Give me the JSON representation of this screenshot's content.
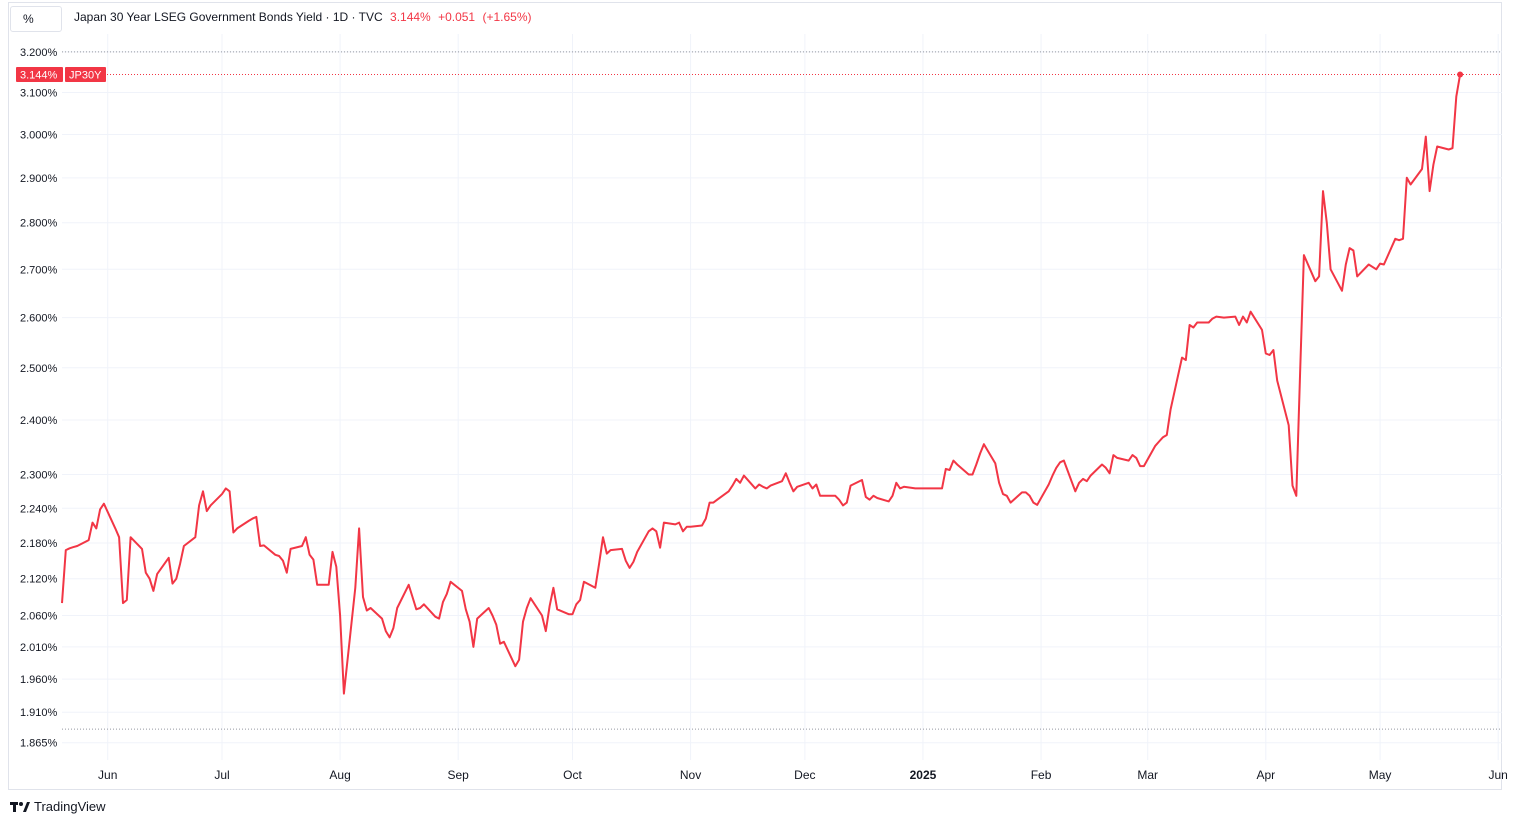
{
  "header": {
    "unit_label": "%",
    "title": "Japan 30 Year LSEG Government Bonds Yield",
    "interval": "1D",
    "source": "TVC",
    "last_value": "3.144%",
    "change": "+0.051",
    "change_pct": "(+1.65%)"
  },
  "price_tag": {
    "value": "3.144%",
    "symbol": "JP30Y"
  },
  "branding": {
    "name": "TradingView",
    "icon": "tradingview-logo-icon"
  },
  "colors": {
    "line": "#f23645",
    "grid": "#f0f3fa",
    "text": "#131722"
  },
  "chart_data": {
    "type": "line",
    "title": "Japan 30 Year LSEG Government Bonds Yield",
    "xlabel": "",
    "ylabel": "%",
    "y_scale": "log",
    "ylim": [
      1.84,
      3.245
    ],
    "xlim": [
      "2024-05-20",
      "2025-06-02"
    ],
    "grid": true,
    "y_ticks": [
      "3.200%",
      "3.100%",
      "3.000%",
      "2.900%",
      "2.800%",
      "2.700%",
      "2.600%",
      "2.500%",
      "2.400%",
      "2.300%",
      "2.240%",
      "2.180%",
      "2.120%",
      "2.060%",
      "2.010%",
      "1.960%",
      "1.910%",
      "1.865%"
    ],
    "x_ticks": [
      {
        "label": "Jun",
        "date": "2024-06-01"
      },
      {
        "label": "Jul",
        "date": "2024-07-01"
      },
      {
        "label": "Aug",
        "date": "2024-08-01"
      },
      {
        "label": "Sep",
        "date": "2024-09-01"
      },
      {
        "label": "Oct",
        "date": "2024-10-01"
      },
      {
        "label": "Nov",
        "date": "2024-11-01"
      },
      {
        "label": "Dec",
        "date": "2024-12-01"
      },
      {
        "label": "2025",
        "date": "2025-01-01",
        "bold": true
      },
      {
        "label": "Feb",
        "date": "2025-02-01"
      },
      {
        "label": "Mar",
        "date": "2025-03-01"
      },
      {
        "label": "Apr",
        "date": "2025-04-01"
      },
      {
        "label": "May",
        "date": "2025-05-01"
      },
      {
        "label": "Jun",
        "date": "2025-06-01"
      }
    ],
    "dotted_levels": [
      3.2,
      1.885
    ],
    "last_value": 3.144,
    "series": [
      {
        "values": [
          [
            "2024-05-20",
            2.08
          ],
          [
            "2024-05-21",
            2.168
          ],
          [
            "2024-05-22",
            2.171
          ],
          [
            "2024-05-23",
            2.173
          ],
          [
            "2024-05-24",
            2.175
          ],
          [
            "2024-05-27",
            2.185
          ],
          [
            "2024-05-28",
            2.215
          ],
          [
            "2024-05-29",
            2.205
          ],
          [
            "2024-05-30",
            2.238
          ],
          [
            "2024-05-31",
            2.248
          ],
          [
            "2024-06-03",
            2.205
          ],
          [
            "2024-06-04",
            2.19
          ],
          [
            "2024-06-05",
            2.08
          ],
          [
            "2024-06-06",
            2.085
          ],
          [
            "2024-06-07",
            2.19
          ],
          [
            "2024-06-10",
            2.17
          ],
          [
            "2024-06-11",
            2.13
          ],
          [
            "2024-06-12",
            2.12
          ],
          [
            "2024-06-13",
            2.1
          ],
          [
            "2024-06-14",
            2.128
          ],
          [
            "2024-06-17",
            2.155
          ],
          [
            "2024-06-18",
            2.112
          ],
          [
            "2024-06-19",
            2.12
          ],
          [
            "2024-06-20",
            2.145
          ],
          [
            "2024-06-21",
            2.175
          ],
          [
            "2024-06-24",
            2.19
          ],
          [
            "2024-06-25",
            2.245
          ],
          [
            "2024-06-26",
            2.27
          ],
          [
            "2024-06-27",
            2.235
          ],
          [
            "2024-06-28",
            2.245
          ],
          [
            "2024-07-01",
            2.265
          ],
          [
            "2024-07-02",
            2.275
          ],
          [
            "2024-07-03",
            2.27
          ],
          [
            "2024-07-04",
            2.198
          ],
          [
            "2024-07-05",
            2.205
          ],
          [
            "2024-07-08",
            2.218
          ],
          [
            "2024-07-09",
            2.222
          ],
          [
            "2024-07-10",
            2.225
          ],
          [
            "2024-07-11",
            2.175
          ],
          [
            "2024-07-12",
            2.176
          ],
          [
            "2024-07-15",
            2.16
          ],
          [
            "2024-07-16",
            2.158
          ],
          [
            "2024-07-17",
            2.15
          ],
          [
            "2024-07-18",
            2.13
          ],
          [
            "2024-07-19",
            2.17
          ],
          [
            "2024-07-22",
            2.175
          ],
          [
            "2024-07-23",
            2.19
          ],
          [
            "2024-07-24",
            2.16
          ],
          [
            "2024-07-25",
            2.152
          ],
          [
            "2024-07-26",
            2.11
          ],
          [
            "2024-07-29",
            2.11
          ],
          [
            "2024-07-30",
            2.165
          ],
          [
            "2024-07-31",
            2.14
          ],
          [
            "2024-08-01",
            2.06
          ],
          [
            "2024-08-02",
            1.938
          ],
          [
            "2024-08-05",
            2.105
          ],
          [
            "2024-08-06",
            2.205
          ],
          [
            "2024-08-07",
            2.09
          ],
          [
            "2024-08-08",
            2.068
          ],
          [
            "2024-08-09",
            2.072
          ],
          [
            "2024-08-12",
            2.055
          ],
          [
            "2024-08-13",
            2.035
          ],
          [
            "2024-08-14",
            2.025
          ],
          [
            "2024-08-15",
            2.04
          ],
          [
            "2024-08-16",
            2.072
          ],
          [
            "2024-08-19",
            2.11
          ],
          [
            "2024-08-20",
            2.09
          ],
          [
            "2024-08-21",
            2.07
          ],
          [
            "2024-08-22",
            2.072
          ],
          [
            "2024-08-23",
            2.078
          ],
          [
            "2024-08-26",
            2.058
          ],
          [
            "2024-08-27",
            2.055
          ],
          [
            "2024-08-28",
            2.082
          ],
          [
            "2024-08-29",
            2.095
          ],
          [
            "2024-08-30",
            2.115
          ],
          [
            "2024-09-02",
            2.1
          ],
          [
            "2024-09-03",
            2.07
          ],
          [
            "2024-09-04",
            2.05
          ],
          [
            "2024-09-05",
            2.01
          ],
          [
            "2024-09-06",
            2.055
          ],
          [
            "2024-09-09",
            2.072
          ],
          [
            "2024-09-10",
            2.06
          ],
          [
            "2024-09-11",
            2.045
          ],
          [
            "2024-09-12",
            2.015
          ],
          [
            "2024-09-13",
            2.018
          ],
          [
            "2024-09-16",
            1.98
          ],
          [
            "2024-09-17",
            1.99
          ],
          [
            "2024-09-18",
            2.05
          ],
          [
            "2024-09-19",
            2.072
          ],
          [
            "2024-09-20",
            2.088
          ],
          [
            "2024-09-23",
            2.06
          ],
          [
            "2024-09-24",
            2.035
          ],
          [
            "2024-09-25",
            2.075
          ],
          [
            "2024-09-26",
            2.105
          ],
          [
            "2024-09-27",
            2.07
          ],
          [
            "2024-09-30",
            2.062
          ],
          [
            "2024-10-01",
            2.062
          ],
          [
            "2024-10-02",
            2.078
          ],
          [
            "2024-10-03",
            2.085
          ],
          [
            "2024-10-04",
            2.115
          ],
          [
            "2024-10-07",
            2.105
          ],
          [
            "2024-10-08",
            2.145
          ],
          [
            "2024-10-09",
            2.19
          ],
          [
            "2024-10-10",
            2.162
          ],
          [
            "2024-10-11",
            2.168
          ],
          [
            "2024-10-14",
            2.17
          ],
          [
            "2024-10-15",
            2.15
          ],
          [
            "2024-10-16",
            2.138
          ],
          [
            "2024-10-17",
            2.148
          ],
          [
            "2024-10-18",
            2.165
          ],
          [
            "2024-10-21",
            2.2
          ],
          [
            "2024-10-22",
            2.205
          ],
          [
            "2024-10-23",
            2.2
          ],
          [
            "2024-10-24",
            2.172
          ],
          [
            "2024-10-25",
            2.215
          ],
          [
            "2024-10-28",
            2.212
          ],
          [
            "2024-10-29",
            2.215
          ],
          [
            "2024-10-30",
            2.2
          ],
          [
            "2024-10-31",
            2.208
          ],
          [
            "2024-11-01",
            2.208
          ],
          [
            "2024-11-04",
            2.21
          ],
          [
            "2024-11-05",
            2.222
          ],
          [
            "2024-11-06",
            2.25
          ],
          [
            "2024-11-07",
            2.25
          ],
          [
            "2024-11-08",
            2.255
          ],
          [
            "2024-11-11",
            2.27
          ],
          [
            "2024-11-12",
            2.28
          ],
          [
            "2024-11-13",
            2.292
          ],
          [
            "2024-11-14",
            2.285
          ],
          [
            "2024-11-15",
            2.298
          ],
          [
            "2024-11-18",
            2.275
          ],
          [
            "2024-11-19",
            2.282
          ],
          [
            "2024-11-20",
            2.278
          ],
          [
            "2024-11-21",
            2.275
          ],
          [
            "2024-11-22",
            2.28
          ],
          [
            "2024-11-25",
            2.288
          ],
          [
            "2024-11-26",
            2.302
          ],
          [
            "2024-11-27",
            2.285
          ],
          [
            "2024-11-28",
            2.27
          ],
          [
            "2024-11-29",
            2.278
          ],
          [
            "2024-12-02",
            2.285
          ],
          [
            "2024-12-03",
            2.275
          ],
          [
            "2024-12-04",
            2.282
          ],
          [
            "2024-12-05",
            2.262
          ],
          [
            "2024-12-06",
            2.262
          ],
          [
            "2024-12-09",
            2.262
          ],
          [
            "2024-12-10",
            2.255
          ],
          [
            "2024-12-11",
            2.245
          ],
          [
            "2024-12-12",
            2.25
          ],
          [
            "2024-12-13",
            2.28
          ],
          [
            "2024-12-16",
            2.29
          ],
          [
            "2024-12-17",
            2.26
          ],
          [
            "2024-12-18",
            2.255
          ],
          [
            "2024-12-19",
            2.262
          ],
          [
            "2024-12-20",
            2.258
          ],
          [
            "2024-12-23",
            2.252
          ],
          [
            "2024-12-24",
            2.262
          ],
          [
            "2024-12-25",
            2.285
          ],
          [
            "2024-12-26",
            2.275
          ],
          [
            "2024-12-27",
            2.278
          ],
          [
            "2024-12-30",
            2.275
          ],
          [
            "2025-01-06",
            2.275
          ],
          [
            "2025-01-07",
            2.31
          ],
          [
            "2025-01-08",
            2.308
          ],
          [
            "2025-01-09",
            2.325
          ],
          [
            "2025-01-10",
            2.318
          ],
          [
            "2025-01-13",
            2.3
          ],
          [
            "2025-01-14",
            2.3
          ],
          [
            "2025-01-15",
            2.318
          ],
          [
            "2025-01-16",
            2.338
          ],
          [
            "2025-01-17",
            2.355
          ],
          [
            "2025-01-20",
            2.32
          ],
          [
            "2025-01-21",
            2.285
          ],
          [
            "2025-01-22",
            2.265
          ],
          [
            "2025-01-23",
            2.262
          ],
          [
            "2025-01-24",
            2.25
          ],
          [
            "2025-01-27",
            2.268
          ],
          [
            "2025-01-28",
            2.268
          ],
          [
            "2025-01-29",
            2.262
          ],
          [
            "2025-01-30",
            2.25
          ],
          [
            "2025-01-31",
            2.246
          ],
          [
            "2025-02-03",
            2.282
          ],
          [
            "2025-02-04",
            2.298
          ],
          [
            "2025-02-05",
            2.312
          ],
          [
            "2025-02-06",
            2.322
          ],
          [
            "2025-02-07",
            2.325
          ],
          [
            "2025-02-10",
            2.27
          ],
          [
            "2025-02-11",
            2.285
          ],
          [
            "2025-02-12",
            2.292
          ],
          [
            "2025-02-13",
            2.288
          ],
          [
            "2025-02-14",
            2.298
          ],
          [
            "2025-02-17",
            2.318
          ],
          [
            "2025-02-18",
            2.312
          ],
          [
            "2025-02-19",
            2.302
          ],
          [
            "2025-02-20",
            2.335
          ],
          [
            "2025-02-21",
            2.33
          ],
          [
            "2025-02-24",
            2.325
          ],
          [
            "2025-02-25",
            2.335
          ],
          [
            "2025-02-26",
            2.33
          ],
          [
            "2025-02-27",
            2.315
          ],
          [
            "2025-02-28",
            2.315
          ],
          [
            "2025-03-03",
            2.352
          ],
          [
            "2025-03-04",
            2.36
          ],
          [
            "2025-03-05",
            2.368
          ],
          [
            "2025-03-06",
            2.372
          ],
          [
            "2025-03-07",
            2.42
          ],
          [
            "2025-03-10",
            2.52
          ],
          [
            "2025-03-11",
            2.515
          ],
          [
            "2025-03-12",
            2.585
          ],
          [
            "2025-03-13",
            2.58
          ],
          [
            "2025-03-14",
            2.59
          ],
          [
            "2025-03-17",
            2.59
          ],
          [
            "2025-03-18",
            2.598
          ],
          [
            "2025-03-19",
            2.602
          ],
          [
            "2025-03-21",
            2.6
          ],
          [
            "2025-03-24",
            2.602
          ],
          [
            "2025-03-25",
            2.585
          ],
          [
            "2025-03-26",
            2.602
          ],
          [
            "2025-03-27",
            2.59
          ],
          [
            "2025-03-28",
            2.612
          ],
          [
            "2025-03-31",
            2.575
          ],
          [
            "2025-04-01",
            2.528
          ],
          [
            "2025-04-02",
            2.525
          ],
          [
            "2025-04-03",
            2.535
          ],
          [
            "2025-04-04",
            2.475
          ],
          [
            "2025-04-07",
            2.39
          ],
          [
            "2025-04-08",
            2.28
          ],
          [
            "2025-04-09",
            2.262
          ],
          [
            "2025-04-10",
            2.49
          ],
          [
            "2025-04-11",
            2.73
          ],
          [
            "2025-04-14",
            2.675
          ],
          [
            "2025-04-15",
            2.685
          ],
          [
            "2025-04-16",
            2.87
          ],
          [
            "2025-04-17",
            2.8
          ],
          [
            "2025-04-18",
            2.7
          ],
          [
            "2025-04-21",
            2.655
          ],
          [
            "2025-04-22",
            2.71
          ],
          [
            "2025-04-23",
            2.745
          ],
          [
            "2025-04-24",
            2.74
          ],
          [
            "2025-04-25",
            2.685
          ],
          [
            "2025-04-28",
            2.71
          ],
          [
            "2025-04-30",
            2.7
          ],
          [
            "2025-05-01",
            2.712
          ],
          [
            "2025-05-02",
            2.71
          ],
          [
            "2025-05-05",
            2.765
          ],
          [
            "2025-05-06",
            2.762
          ],
          [
            "2025-05-07",
            2.765
          ],
          [
            "2025-05-08",
            2.9
          ],
          [
            "2025-05-09",
            2.885
          ],
          [
            "2025-05-12",
            2.92
          ],
          [
            "2025-05-13",
            2.995
          ],
          [
            "2025-05-14",
            2.87
          ],
          [
            "2025-05-15",
            2.93
          ],
          [
            "2025-05-16",
            2.972
          ],
          [
            "2025-05-19",
            2.965
          ],
          [
            "2025-05-20",
            2.968
          ],
          [
            "2025-05-21",
            3.09
          ],
          [
            "2025-05-22",
            3.144
          ]
        ]
      }
    ]
  }
}
